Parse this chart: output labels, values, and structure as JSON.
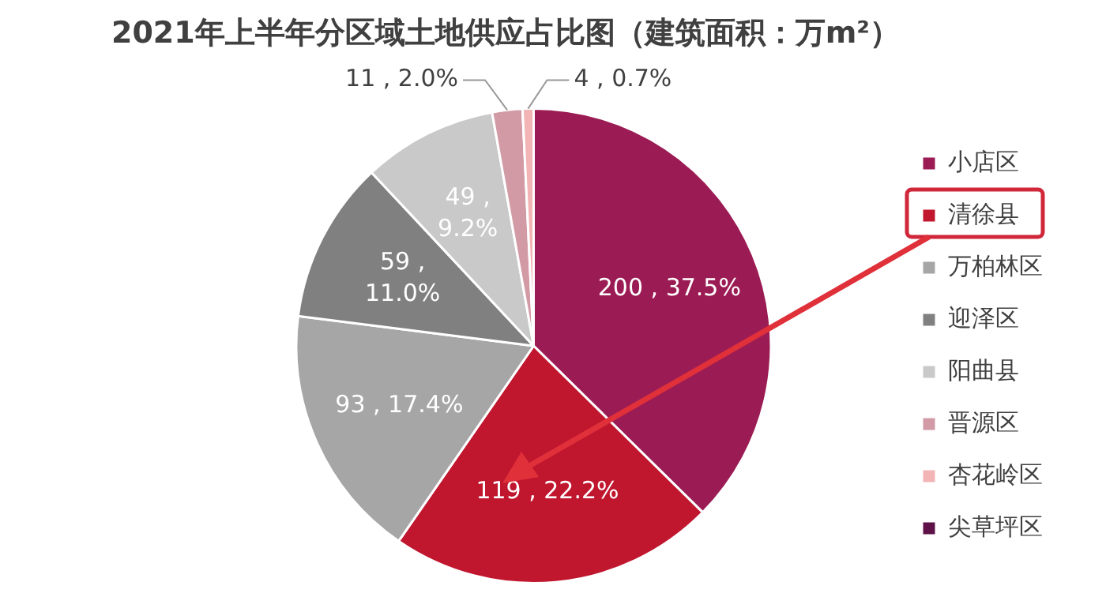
{
  "chart_data": {
    "type": "pie",
    "title": "2021年上半年分区域土地供应占比图（建筑面积：万m²）",
    "categories": [
      "小店区",
      "清徐县",
      "万柏林区",
      "迎泽区",
      "阳曲县",
      "晋源区",
      "杏花岭区",
      "尖草坪区"
    ],
    "values": [
      200,
      119,
      93,
      59,
      49,
      11,
      4,
      0
    ],
    "colors": [
      "#9b1b54",
      "#c0172f",
      "#a6a6a6",
      "#808080",
      "#c9c9c9",
      "#d29aa5",
      "#f2b4b4",
      "#5e1248"
    ],
    "value_labels": [
      "200 , 37.5%",
      "119 , 22.2%",
      "93 , 17.4%",
      "59 , 11.0%",
      "49 , 9.2%",
      "11 , 2.0%",
      "4 , 0.7%",
      null
    ],
    "legend": "right"
  }
}
